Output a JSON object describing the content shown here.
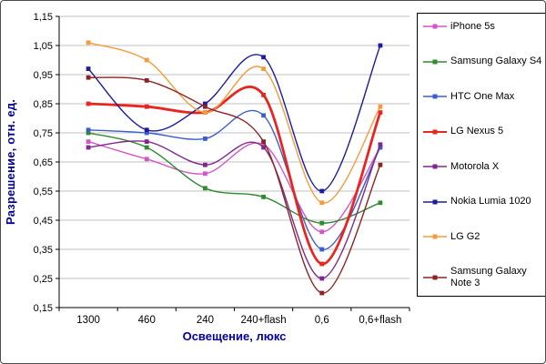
{
  "chart_data": {
    "type": "line",
    "title": "",
    "xlabel": "Освещение, люкс",
    "ylabel": "Разрешение, отн. ед.",
    "categories": [
      "1300",
      "460",
      "240",
      "240+flash",
      "0,6",
      "0,6+flash"
    ],
    "series": [
      {
        "name": "iPhone 5s",
        "color": "#d356c8",
        "width": 1.4,
        "values": [
          0.72,
          0.66,
          0.61,
          0.71,
          0.41,
          0.7
        ]
      },
      {
        "name": "Samsung Galaxy S4",
        "color": "#2e8b2e",
        "width": 1.4,
        "values": [
          0.75,
          0.7,
          0.56,
          0.53,
          0.44,
          0.51
        ]
      },
      {
        "name": "HTC One Max",
        "color": "#3a5fcd",
        "width": 1.4,
        "values": [
          0.76,
          0.75,
          0.73,
          0.81,
          0.35,
          0.7
        ]
      },
      {
        "name": "LG Nexus 5",
        "color": "#e8261f",
        "width": 2.8,
        "values": [
          0.85,
          0.84,
          0.82,
          0.88,
          0.3,
          0.82
        ]
      },
      {
        "name": "Motorola X",
        "color": "#7d2a8c",
        "width": 1.4,
        "values": [
          0.7,
          0.72,
          0.64,
          0.7,
          0.25,
          0.71
        ]
      },
      {
        "name": "Nokia Lumia 1020",
        "color": "#1c1c9c",
        "width": 1.4,
        "values": [
          0.97,
          0.76,
          0.85,
          1.01,
          0.55,
          1.05
        ]
      },
      {
        "name": "LG G2",
        "color": "#f59b3c",
        "width": 1.4,
        "values": [
          1.06,
          1.0,
          0.82,
          0.97,
          0.51,
          0.84
        ]
      },
      {
        "name": "Samsung Galaxy Note 3",
        "color": "#8e2323",
        "width": 1.4,
        "values": [
          0.94,
          0.93,
          0.84,
          0.72,
          0.2,
          0.64
        ]
      }
    ],
    "ylim": [
      0.15,
      1.15
    ],
    "ytick_step": 0.1,
    "ytick_labels": [
      "1,15",
      "1,05",
      "0,95",
      "0,85",
      "0,75",
      "0,65",
      "0,55",
      "0,45",
      "0,35",
      "0,25",
      "0,15"
    ],
    "grid": true,
    "legend_position": "right"
  },
  "colors": {
    "axis_title": "#00009c",
    "tick_label": "#000000",
    "grid": "#c0c0c0",
    "axis": "#000000",
    "background": "#ffffff",
    "frame_border": "#4d4d4d",
    "legend_border": "#000000"
  }
}
